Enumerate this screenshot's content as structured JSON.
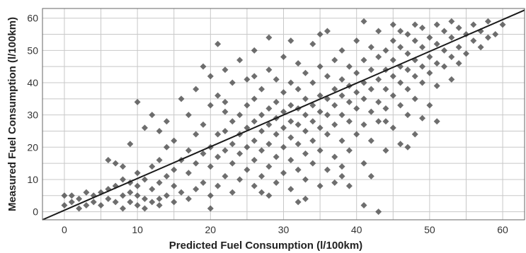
{
  "chart_data": {
    "type": "scatter",
    "title": "",
    "xlabel": "Predicted Fuel Consumption (l/100km)",
    "ylabel": "Measured Fuel Consumption (l/100km)",
    "xlim": [
      -3,
      63
    ],
    "ylim": [
      -2.5,
      63
    ],
    "xticks": [
      "0",
      "10",
      "20",
      "30",
      "40",
      "50",
      "60"
    ],
    "yticks": [
      "0",
      "10",
      "20",
      "30",
      "40",
      "50",
      "60"
    ],
    "grid": true,
    "legend": "none",
    "marker": "diamond",
    "colors": {
      "marker": "#555555",
      "line": "#1a1a1a",
      "grid": "#c8c8c8",
      "frame": "#666666"
    },
    "fit_line": {
      "x": [
        -3,
        63
      ],
      "y": [
        -2.5,
        62.5
      ]
    },
    "series": [
      {
        "points": [
          [
            0,
            2
          ],
          [
            0,
            5
          ],
          [
            1,
            3
          ],
          [
            1,
            5
          ],
          [
            2,
            1
          ],
          [
            2,
            4
          ],
          [
            3,
            2
          ],
          [
            3,
            6
          ],
          [
            4,
            3
          ],
          [
            4,
            5
          ],
          [
            5,
            2
          ],
          [
            5,
            6
          ],
          [
            6,
            4
          ],
          [
            6,
            7
          ],
          [
            6,
            16
          ],
          [
            7,
            3
          ],
          [
            7,
            8
          ],
          [
            7,
            15
          ],
          [
            8,
            1
          ],
          [
            8,
            5
          ],
          [
            8,
            10
          ],
          [
            8,
            14
          ],
          [
            9,
            3
          ],
          [
            9,
            6
          ],
          [
            9,
            9
          ],
          [
            9,
            21
          ],
          [
            10,
            2
          ],
          [
            10,
            5
          ],
          [
            10,
            8
          ],
          [
            10,
            12
          ],
          [
            10,
            34
          ],
          [
            11,
            1
          ],
          [
            11,
            4
          ],
          [
            11,
            10
          ],
          [
            11,
            26
          ],
          [
            12,
            3
          ],
          [
            12,
            7
          ],
          [
            12,
            14
          ],
          [
            12,
            30
          ],
          [
            13,
            2
          ],
          [
            13,
            9
          ],
          [
            13,
            16
          ],
          [
            13,
            25
          ],
          [
            14,
            5
          ],
          [
            14,
            11
          ],
          [
            14,
            20
          ],
          [
            14,
            28
          ],
          [
            15,
            3
          ],
          [
            15,
            8
          ],
          [
            15,
            13
          ],
          [
            15,
            22
          ],
          [
            16,
            6
          ],
          [
            16,
            16
          ],
          [
            16,
            35
          ],
          [
            17,
            4
          ],
          [
            17,
            12
          ],
          [
            17,
            19
          ],
          [
            17,
            30
          ],
          [
            18,
            7
          ],
          [
            18,
            15
          ],
          [
            18,
            24
          ],
          [
            18,
            38
          ],
          [
            19,
            9
          ],
          [
            19,
            18
          ],
          [
            19,
            27
          ],
          [
            19,
            45
          ],
          [
            20,
            5
          ],
          [
            20,
            14
          ],
          [
            20,
            20
          ],
          [
            20,
            33
          ],
          [
            20,
            42
          ],
          [
            21,
            8
          ],
          [
            21,
            17
          ],
          [
            21,
            24
          ],
          [
            21,
            36
          ],
          [
            21,
            52
          ],
          [
            22,
            11
          ],
          [
            22,
            19
          ],
          [
            22,
            25
          ],
          [
            22,
            31
          ],
          [
            22,
            44
          ],
          [
            23,
            6
          ],
          [
            23,
            15
          ],
          [
            23,
            21
          ],
          [
            23,
            28
          ],
          [
            23,
            40
          ],
          [
            24,
            10
          ],
          [
            24,
            18
          ],
          [
            24,
            24
          ],
          [
            24,
            30
          ],
          [
            24,
            47
          ],
          [
            25,
            13
          ],
          [
            25,
            20
          ],
          [
            25,
            26
          ],
          [
            25,
            33
          ],
          [
            25,
            41
          ],
          [
            26,
            8
          ],
          [
            26,
            16
          ],
          [
            26,
            22
          ],
          [
            26,
            28
          ],
          [
            26,
            35
          ],
          [
            26,
            50
          ],
          [
            27,
            11
          ],
          [
            27,
            19
          ],
          [
            27,
            25
          ],
          [
            27,
            30
          ],
          [
            27,
            38
          ],
          [
            28,
            5
          ],
          [
            28,
            14
          ],
          [
            28,
            21
          ],
          [
            28,
            27
          ],
          [
            28,
            32
          ],
          [
            28,
            44
          ],
          [
            28,
            54
          ],
          [
            29,
            9
          ],
          [
            29,
            17
          ],
          [
            29,
            24
          ],
          [
            29,
            29
          ],
          [
            29,
            34
          ],
          [
            29,
            41
          ],
          [
            30,
            12
          ],
          [
            30,
            20
          ],
          [
            30,
            26
          ],
          [
            30,
            31
          ],
          [
            30,
            37
          ],
          [
            30,
            48
          ],
          [
            31,
            7
          ],
          [
            31,
            16
          ],
          [
            31,
            23
          ],
          [
            31,
            28
          ],
          [
            31,
            33
          ],
          [
            31,
            40
          ],
          [
            32,
            3
          ],
          [
            32,
            13
          ],
          [
            32,
            21
          ],
          [
            32,
            27
          ],
          [
            32,
            32
          ],
          [
            32,
            38
          ],
          [
            32,
            46
          ],
          [
            33,
            10
          ],
          [
            33,
            18
          ],
          [
            33,
            25
          ],
          [
            33,
            30
          ],
          [
            33,
            35
          ],
          [
            33,
            43
          ],
          [
            34,
            15
          ],
          [
            34,
            22
          ],
          [
            34,
            28
          ],
          [
            34,
            33
          ],
          [
            34,
            40
          ],
          [
            34,
            52
          ],
          [
            35,
            8
          ],
          [
            35,
            19
          ],
          [
            35,
            26
          ],
          [
            35,
            31
          ],
          [
            35,
            36
          ],
          [
            35,
            45
          ],
          [
            36,
            13
          ],
          [
            36,
            24
          ],
          [
            36,
            30
          ],
          [
            36,
            35
          ],
          [
            36,
            42
          ],
          [
            36,
            56
          ],
          [
            37,
            17
          ],
          [
            37,
            27
          ],
          [
            37,
            33
          ],
          [
            37,
            38
          ],
          [
            37,
            47
          ],
          [
            38,
            11
          ],
          [
            38,
            22
          ],
          [
            38,
            30
          ],
          [
            38,
            36
          ],
          [
            38,
            41
          ],
          [
            38,
            50
          ],
          [
            39,
            8
          ],
          [
            39,
            19
          ],
          [
            39,
            28
          ],
          [
            39,
            34
          ],
          [
            39,
            39
          ],
          [
            39,
            45
          ],
          [
            40,
            24
          ],
          [
            40,
            32
          ],
          [
            40,
            37
          ],
          [
            40,
            43
          ],
          [
            40,
            53
          ],
          [
            41,
            15
          ],
          [
            41,
            27
          ],
          [
            41,
            35
          ],
          [
            41,
            40
          ],
          [
            41,
            47
          ],
          [
            41,
            59
          ],
          [
            42,
            11
          ],
          [
            42,
            22
          ],
          [
            42,
            31
          ],
          [
            42,
            38
          ],
          [
            42,
            44
          ],
          [
            42,
            51
          ],
          [
            43,
            28
          ],
          [
            43,
            34
          ],
          [
            43,
            41
          ],
          [
            43,
            48
          ],
          [
            43,
            56
          ],
          [
            44,
            19
          ],
          [
            44,
            32
          ],
          [
            44,
            38
          ],
          [
            44,
            44
          ],
          [
            44,
            50
          ],
          [
            45,
            26
          ],
          [
            45,
            36
          ],
          [
            45,
            42
          ],
          [
            45,
            47
          ],
          [
            45,
            53
          ],
          [
            45,
            58
          ],
          [
            46,
            21
          ],
          [
            46,
            33
          ],
          [
            46,
            40
          ],
          [
            46,
            45
          ],
          [
            46,
            51
          ],
          [
            46,
            56
          ],
          [
            47,
            30
          ],
          [
            47,
            38
          ],
          [
            47,
            44
          ],
          [
            47,
            49
          ],
          [
            47,
            55
          ],
          [
            48,
            24
          ],
          [
            48,
            35
          ],
          [
            48,
            42
          ],
          [
            48,
            47
          ],
          [
            48,
            53
          ],
          [
            48,
            58
          ],
          [
            49,
            29
          ],
          [
            49,
            40
          ],
          [
            49,
            45
          ],
          [
            49,
            51
          ],
          [
            49,
            57
          ],
          [
            50,
            33
          ],
          [
            50,
            43
          ],
          [
            50,
            48
          ],
          [
            50,
            54
          ],
          [
            51,
            28
          ],
          [
            51,
            39
          ],
          [
            51,
            46
          ],
          [
            51,
            52
          ],
          [
            51,
            58
          ],
          [
            52,
            45
          ],
          [
            52,
            50
          ],
          [
            52,
            56
          ],
          [
            53,
            41
          ],
          [
            53,
            48
          ],
          [
            53,
            54
          ],
          [
            53,
            59
          ],
          [
            54,
            46
          ],
          [
            54,
            51
          ],
          [
            54,
            57
          ],
          [
            55,
            49
          ],
          [
            55,
            55
          ],
          [
            56,
            53
          ],
          [
            56,
            58
          ],
          [
            57,
            51
          ],
          [
            57,
            56
          ],
          [
            58,
            54
          ],
          [
            58,
            59
          ],
          [
            59,
            55
          ],
          [
            60,
            58
          ],
          [
            13,
            4
          ],
          [
            20,
            1
          ],
          [
            22,
            34
          ],
          [
            26,
            42
          ],
          [
            27,
            6
          ],
          [
            31,
            53
          ],
          [
            33,
            4
          ],
          [
            35,
            55
          ],
          [
            37,
            9
          ],
          [
            38,
            14
          ],
          [
            41,
            2
          ],
          [
            43,
            0
          ],
          [
            47,
            20
          ],
          [
            44,
            28
          ]
        ]
      }
    ]
  }
}
